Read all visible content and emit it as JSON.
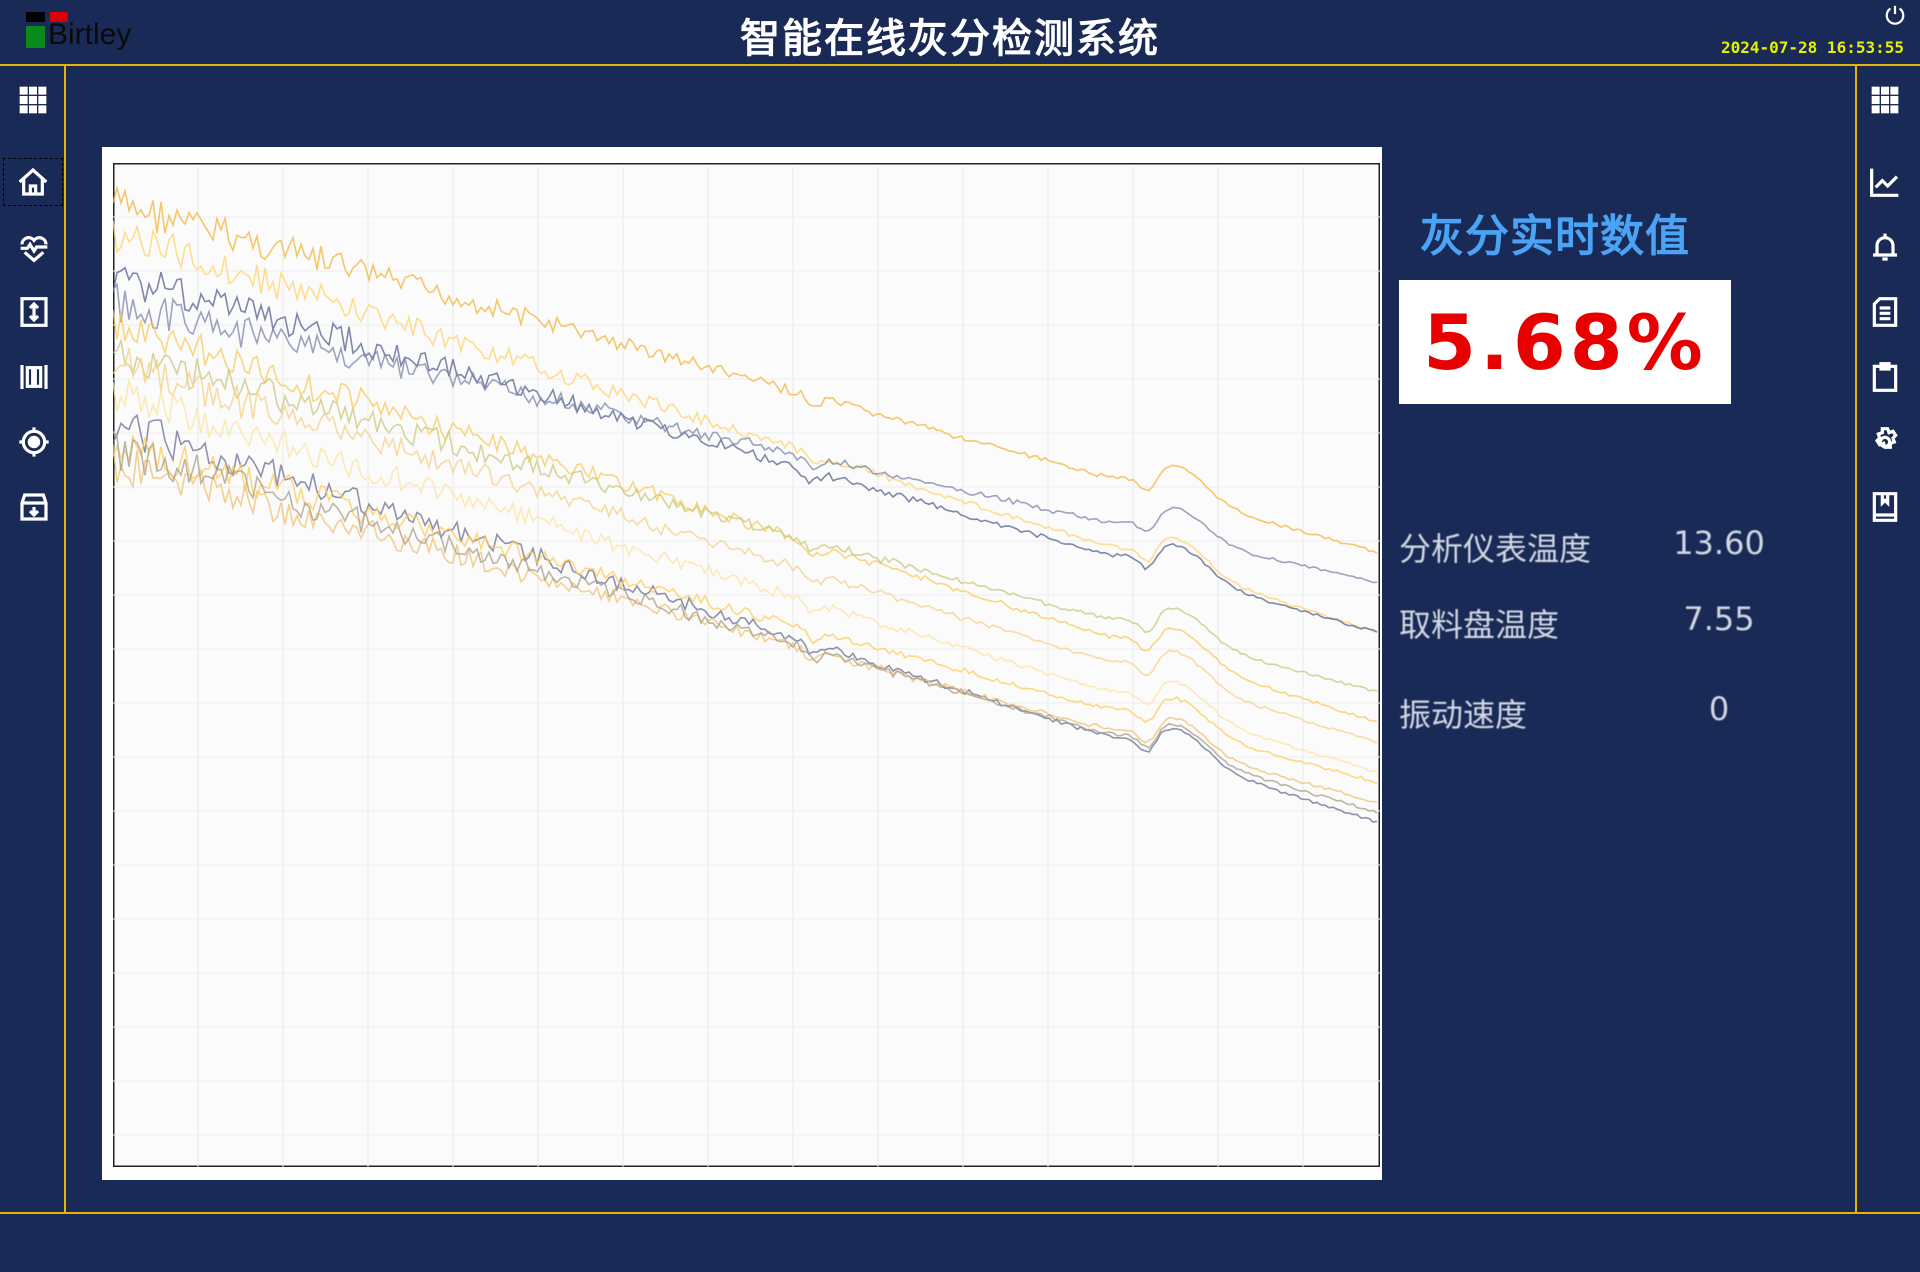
{
  "header": {
    "logo_text": "Birtley",
    "title": "智能在线灰分检测系统",
    "datetime": "2024-07-28  16:53:55"
  },
  "colors": {
    "background": "#192a56",
    "divider": "#e8b400",
    "accent_title": "#4aa3f5",
    "value_red": "#e80000",
    "clock": "#e8f000"
  },
  "left_sidebar": [
    {
      "icon": "grid-icon"
    },
    {
      "icon": "home-icon",
      "selected": true
    },
    {
      "icon": "heart-pulse-icon"
    },
    {
      "icon": "vertical-resize-icon"
    },
    {
      "icon": "barcode-icon"
    },
    {
      "icon": "target-icon"
    },
    {
      "icon": "archive-download-icon"
    }
  ],
  "right_sidebar": [
    {
      "icon": "grid-icon"
    },
    {
      "icon": "line-chart-icon"
    },
    {
      "icon": "bell-icon"
    },
    {
      "icon": "document-icon"
    },
    {
      "icon": "clipboard-icon"
    },
    {
      "icon": "gear-icon"
    },
    {
      "icon": "book-icon"
    }
  ],
  "spectrum": {
    "line_colors": [
      "#f2b53a",
      "#ffd36a",
      "#55628f",
      "#7d86a8",
      "#f7c95a",
      "#c9c77a",
      "#f5d08a",
      "#fbe3a2",
      "#6a6f90",
      "#ffcc55",
      "#f0c070",
      "#a89f8a"
    ]
  },
  "realtime": {
    "title": "灰分实时数值",
    "value": "5.68%"
  },
  "stats": [
    {
      "label": "分析仪表温度",
      "value": "13.60"
    },
    {
      "label": "取料盘温度",
      "value": "7.55"
    },
    {
      "label": "振动速度",
      "value": "0"
    }
  ]
}
